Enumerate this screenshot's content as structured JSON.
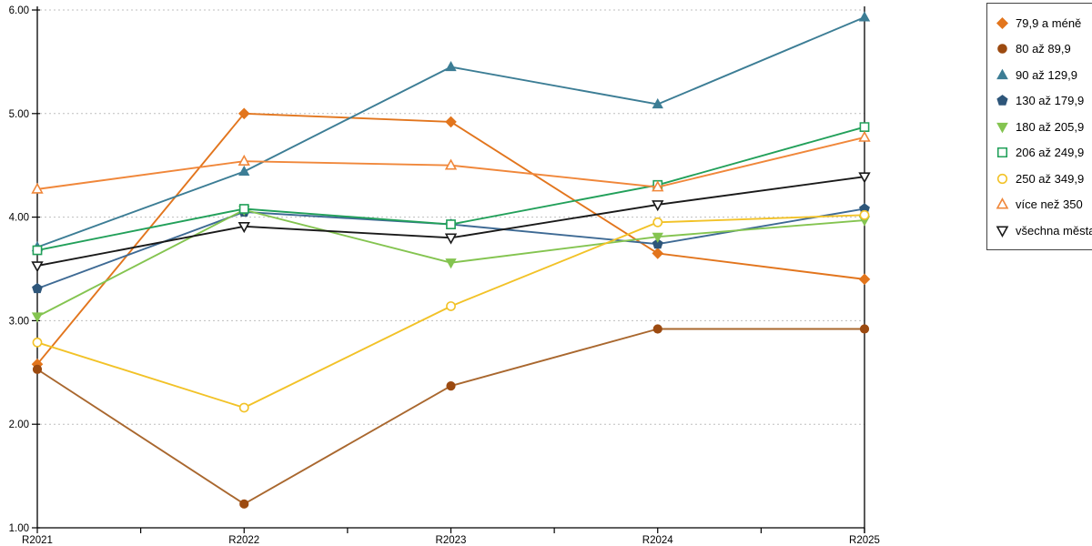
{
  "chart_data": {
    "type": "line",
    "categories": [
      "R2021",
      "R2022",
      "R2023",
      "R2024",
      "R2025"
    ],
    "series": [
      {
        "name": "79,9 a méně",
        "marker": "diamond",
        "filled": true,
        "color": "#E2751D",
        "values": [
          2.58,
          5.0,
          4.92,
          3.65,
          3.4
        ]
      },
      {
        "name": "80 až 89,9",
        "marker": "circle",
        "filled": true,
        "color": "#9C4A10",
        "line_color": "#A9672E",
        "values": [
          2.53,
          1.23,
          2.37,
          2.92,
          2.92
        ]
      },
      {
        "name": "90 až 129,9",
        "marker": "triangle-up",
        "filled": true,
        "color": "#3C7D95",
        "values": [
          3.71,
          4.44,
          5.45,
          5.09,
          5.93
        ]
      },
      {
        "name": "130 až 179,9",
        "marker": "pentagon",
        "filled": true,
        "color": "#2E567A",
        "line_color": "#3E6A94",
        "values": [
          3.31,
          4.05,
          3.93,
          3.74,
          4.08
        ]
      },
      {
        "name": "180 až 205,9",
        "marker": "triangle-down",
        "filled": true,
        "color": "#84C450",
        "values": [
          3.04,
          4.07,
          3.56,
          3.81,
          3.97
        ]
      },
      {
        "name": "206 až 249,9",
        "marker": "square",
        "filled": false,
        "color": "#22A05A",
        "values": [
          3.68,
          4.08,
          3.93,
          4.31,
          4.87
        ]
      },
      {
        "name": "250 až 349,9",
        "marker": "circle",
        "filled": false,
        "color": "#F2C227",
        "values": [
          2.79,
          2.16,
          3.14,
          3.95,
          4.02
        ]
      },
      {
        "name": "více než 350",
        "marker": "triangle-up",
        "filled": false,
        "color": "#F0873A",
        "values": [
          4.27,
          4.54,
          4.5,
          4.29,
          4.77
        ]
      },
      {
        "name": "všechna města",
        "marker": "triangle-down",
        "filled": false,
        "color": "#1A1A1A",
        "values": [
          3.53,
          3.91,
          3.8,
          4.12,
          4.39
        ]
      }
    ],
    "title": "",
    "xlabel": "",
    "ylabel": "",
    "ylim": [
      1,
      6
    ],
    "yticks": [
      1,
      2,
      3,
      4,
      5,
      6
    ],
    "ytick_labels": [
      "1.00",
      "2.00",
      "3.00",
      "4.00",
      "5.00",
      "6.00"
    ],
    "grid": "horizontal dashed at 2.00-6.00",
    "legend_position": "top-right"
  },
  "colors": {
    "background": "#FFFFFF",
    "axis": "#000000",
    "gridline": "#BFBFBF",
    "tick_label": "#000000",
    "legend_border": "#444444"
  }
}
